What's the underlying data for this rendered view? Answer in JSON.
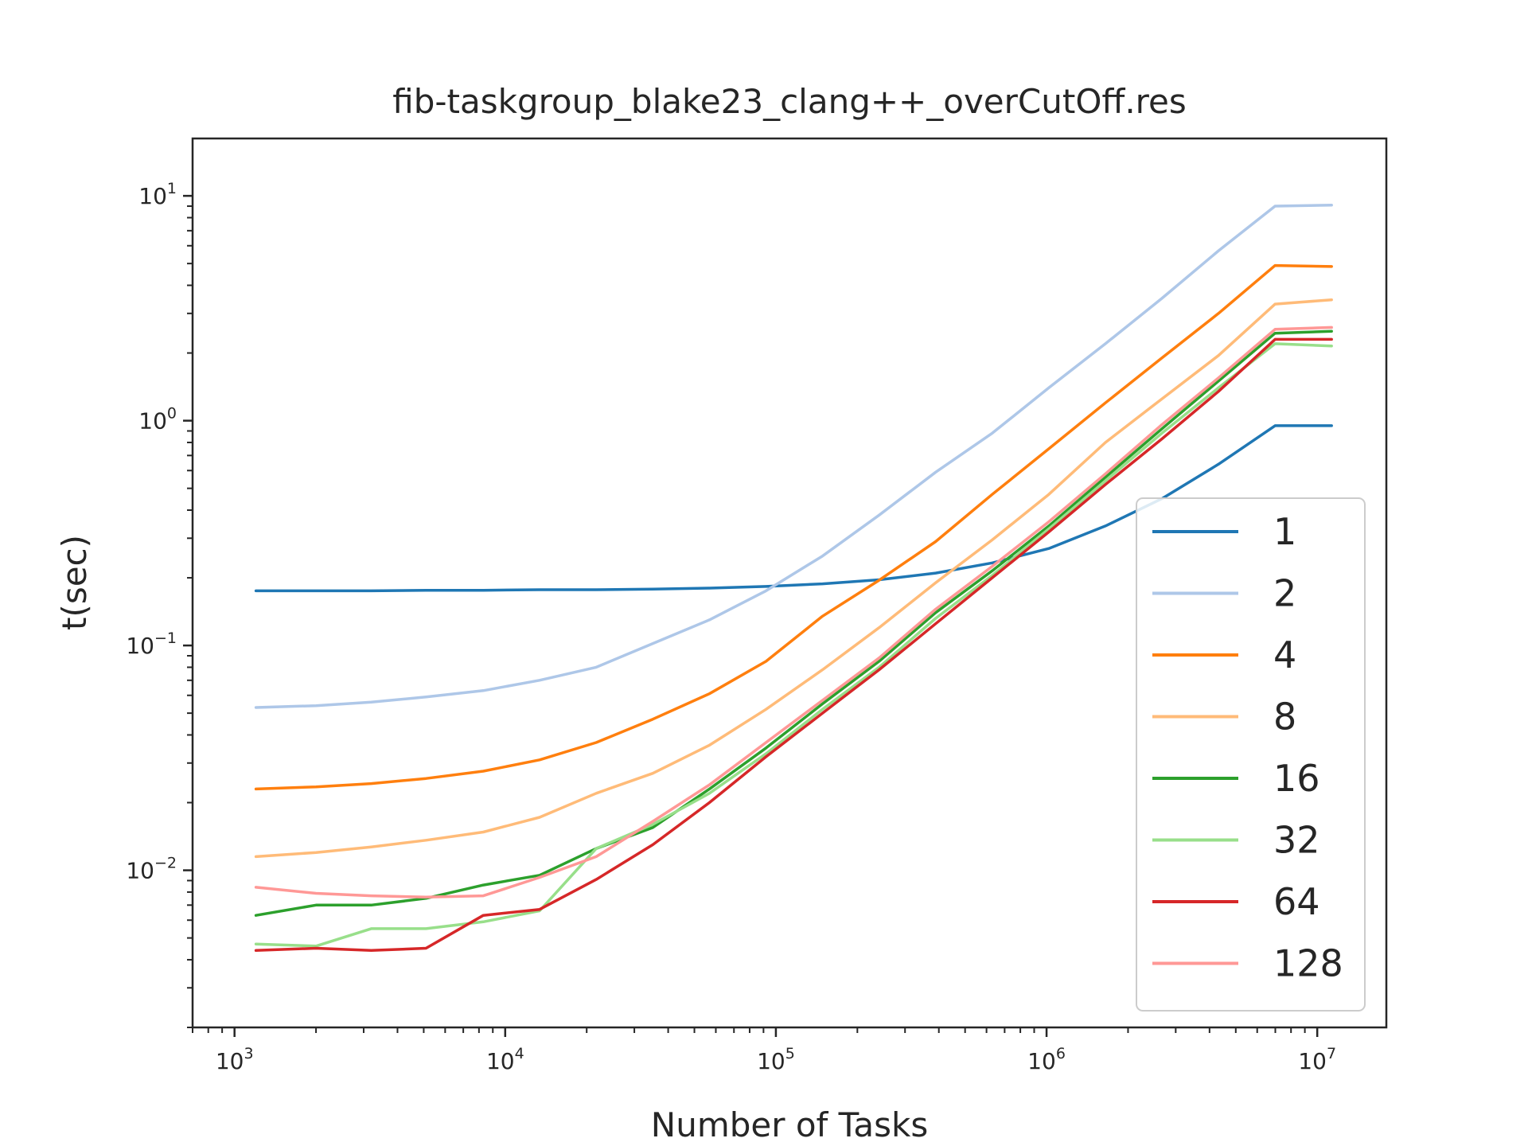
{
  "chart_data": {
    "type": "line",
    "title": "fib-taskgroup_blake23_clang++_overCutOff.res",
    "xlabel": "Number of Tasks",
    "ylabel": "t(sec)",
    "xscale": "log",
    "yscale": "log",
    "xlim": [
      700,
      18000000
    ],
    "ylim": [
      0.002,
      18
    ],
    "x_ticks": [
      {
        "value": 1000,
        "base": "10",
        "exp": "3"
      },
      {
        "value": 10000,
        "base": "10",
        "exp": "4"
      },
      {
        "value": 100000,
        "base": "10",
        "exp": "5"
      },
      {
        "value": 1000000,
        "base": "10",
        "exp": "6"
      },
      {
        "value": 10000000,
        "base": "10",
        "exp": "7"
      }
    ],
    "y_ticks": [
      {
        "value": 0.01,
        "base": "10",
        "exp": "−2"
      },
      {
        "value": 0.1,
        "base": "10",
        "exp": "−1"
      },
      {
        "value": 1,
        "base": "10",
        "exp": "0"
      },
      {
        "value": 10,
        "base": "10",
        "exp": "1"
      }
    ],
    "grid": false,
    "legend_position": "lower-right",
    "x": [
      1200,
      2000,
      3200,
      5100,
      8300,
      13400,
      21700,
      35100,
      56800,
      91900,
      148700,
      240600,
      389300,
      630000,
      1019300,
      1649300,
      2668600,
      4317800,
      6987000,
      11300000
    ],
    "series": [
      {
        "name": "1",
        "color": "#1f77b4",
        "values": [
          0.175,
          0.175,
          0.175,
          0.176,
          0.176,
          0.177,
          0.177,
          0.178,
          0.18,
          0.183,
          0.188,
          0.196,
          0.21,
          0.233,
          0.27,
          0.34,
          0.45,
          0.64,
          0.95,
          0.95
        ]
      },
      {
        "name": "2",
        "color": "#aec7e8",
        "values": [
          0.053,
          0.054,
          0.056,
          0.059,
          0.063,
          0.07,
          0.08,
          0.102,
          0.13,
          0.175,
          0.25,
          0.38,
          0.59,
          0.88,
          1.4,
          2.2,
          3.5,
          5.7,
          9.0,
          9.1
        ]
      },
      {
        "name": "4",
        "color": "#ff7f0e",
        "values": [
          0.023,
          0.0235,
          0.0243,
          0.0256,
          0.0276,
          0.031,
          0.037,
          0.047,
          0.061,
          0.085,
          0.135,
          0.195,
          0.29,
          0.47,
          0.75,
          1.2,
          1.9,
          3.0,
          4.9,
          4.85
        ]
      },
      {
        "name": "8",
        "color": "#ffbb78",
        "values": [
          0.0115,
          0.012,
          0.0127,
          0.0136,
          0.0148,
          0.0172,
          0.022,
          0.027,
          0.036,
          0.052,
          0.078,
          0.12,
          0.19,
          0.295,
          0.47,
          0.8,
          1.25,
          1.95,
          3.3,
          3.45
        ]
      },
      {
        "name": "16",
        "color": "#2ca02c",
        "values": [
          0.0063,
          0.007,
          0.007,
          0.0075,
          0.0086,
          0.0095,
          0.0125,
          0.0155,
          0.023,
          0.035,
          0.055,
          0.085,
          0.14,
          0.215,
          0.34,
          0.56,
          0.92,
          1.5,
          2.45,
          2.5
        ]
      },
      {
        "name": "32",
        "color": "#98df8a",
        "values": [
          0.0047,
          0.0046,
          0.0055,
          0.0055,
          0.0059,
          0.0066,
          0.0125,
          0.016,
          0.022,
          0.033,
          0.052,
          0.08,
          0.132,
          0.205,
          0.33,
          0.54,
          0.88,
          1.4,
          2.2,
          2.15
        ]
      },
      {
        "name": "64",
        "color": "#d62728",
        "values": [
          0.0044,
          0.0045,
          0.0044,
          0.0045,
          0.0063,
          0.0067,
          0.0091,
          0.013,
          0.02,
          0.032,
          0.05,
          0.078,
          0.125,
          0.2,
          0.32,
          0.52,
          0.83,
          1.35,
          2.3,
          2.3
        ]
      },
      {
        "name": "128",
        "color": "#ff9896",
        "values": [
          0.0084,
          0.0079,
          0.0077,
          0.0076,
          0.0077,
          0.0093,
          0.0115,
          0.0165,
          0.024,
          0.037,
          0.057,
          0.088,
          0.145,
          0.225,
          0.355,
          0.58,
          0.96,
          1.55,
          2.55,
          2.6
        ]
      }
    ]
  }
}
